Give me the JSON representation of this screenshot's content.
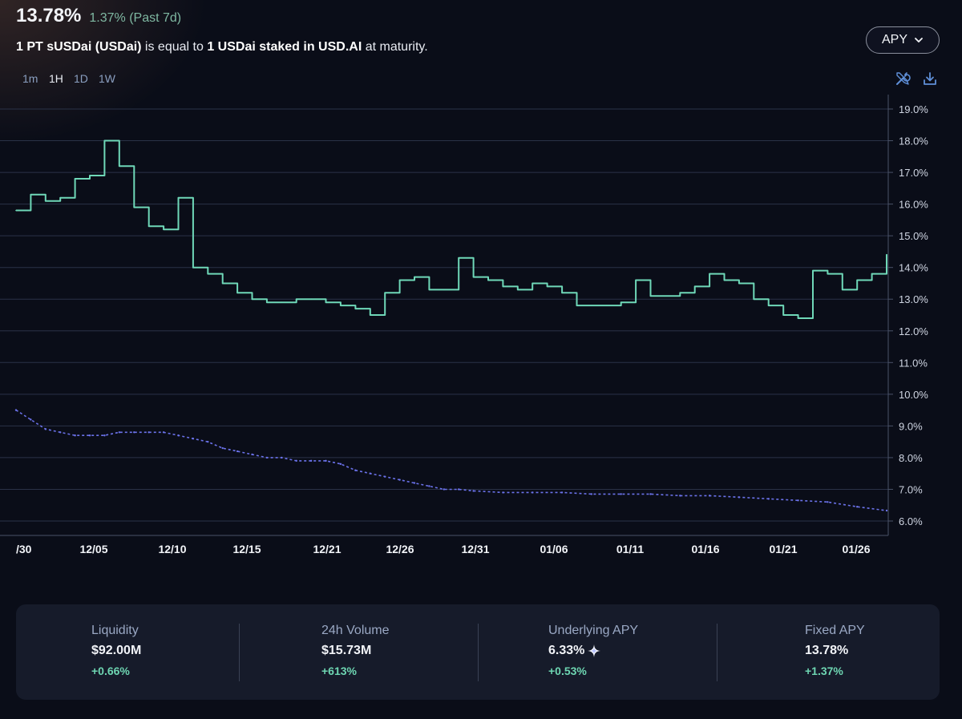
{
  "header": {
    "value": "13.78%",
    "change": "1.37% (Past 7d)"
  },
  "description": {
    "part1": "1 PT sUSDai (USDai)",
    "part2": " is equal to ",
    "part3": "1 USDai staked in USD.AI",
    "part4": " at maturity."
  },
  "toolbar": {
    "dropdown_label": "APY",
    "timeframes": [
      "1m",
      "1H",
      "1D",
      "1W"
    ],
    "active_timeframe": "1H",
    "icons": [
      "wrench-screwdriver-icon",
      "download-icon"
    ]
  },
  "chart_data": {
    "type": "line",
    "x_labels": [
      "/30",
      "12/05",
      "12/10",
      "12/15",
      "12/21",
      "12/26",
      "12/31",
      "01/06",
      "01/11",
      "01/16",
      "01/21",
      "01/26"
    ],
    "y_ticks": [
      "19.0%",
      "18.0%",
      "17.0%",
      "16.0%",
      "15.0%",
      "14.0%",
      "13.0%",
      "12.0%",
      "11.0%",
      "10.0%",
      "9.0%",
      "8.0%",
      "7.0%",
      "6.0%"
    ],
    "ylim": [
      6.0,
      19.0
    ],
    "grid": true,
    "series": [
      {
        "style": "solid",
        "color": "#6fd8b8",
        "points": [
          [
            "11/30",
            15.8
          ],
          [
            "12/01",
            16.3
          ],
          [
            "12/02",
            16.1
          ],
          [
            "12/03",
            16.2
          ],
          [
            "12/04",
            16.8
          ],
          [
            "12/05",
            16.9
          ],
          [
            "12/06",
            18.0
          ],
          [
            "12/07",
            17.2
          ],
          [
            "12/08",
            15.9
          ],
          [
            "12/09",
            15.3
          ],
          [
            "12/10",
            15.2
          ],
          [
            "12/11",
            16.2
          ],
          [
            "12/12",
            14.0
          ],
          [
            "12/13",
            13.8
          ],
          [
            "12/14",
            13.5
          ],
          [
            "12/15",
            13.2
          ],
          [
            "12/16",
            13.0
          ],
          [
            "12/17",
            12.9
          ],
          [
            "12/18",
            12.9
          ],
          [
            "12/19",
            13.0
          ],
          [
            "12/20",
            13.0
          ],
          [
            "12/21",
            12.9
          ],
          [
            "12/22",
            12.8
          ],
          [
            "12/23",
            12.7
          ],
          [
            "12/24",
            12.5
          ],
          [
            "12/25",
            13.2
          ],
          [
            "12/26",
            13.6
          ],
          [
            "12/27",
            13.7
          ],
          [
            "12/28",
            13.3
          ],
          [
            "12/29",
            13.3
          ],
          [
            "12/30",
            14.3
          ],
          [
            "12/31",
            13.7
          ],
          [
            "01/01",
            13.6
          ],
          [
            "01/02",
            13.4
          ],
          [
            "01/03",
            13.3
          ],
          [
            "01/04",
            13.5
          ],
          [
            "01/05",
            13.4
          ],
          [
            "01/06",
            13.2
          ],
          [
            "01/07",
            12.8
          ],
          [
            "01/08",
            12.8
          ],
          [
            "01/09",
            12.8
          ],
          [
            "01/10",
            12.9
          ],
          [
            "01/11",
            13.6
          ],
          [
            "01/12",
            13.1
          ],
          [
            "01/13",
            13.1
          ],
          [
            "01/14",
            13.2
          ],
          [
            "01/15",
            13.4
          ],
          [
            "01/16",
            13.8
          ],
          [
            "01/17",
            13.6
          ],
          [
            "01/18",
            13.5
          ],
          [
            "01/19",
            13.0
          ],
          [
            "01/20",
            12.8
          ],
          [
            "01/21",
            12.5
          ],
          [
            "01/22",
            12.4
          ],
          [
            "01/23",
            13.9
          ],
          [
            "01/24",
            13.8
          ],
          [
            "01/25",
            13.3
          ],
          [
            "01/26",
            13.6
          ],
          [
            "01/27",
            13.8
          ],
          [
            "01/28",
            14.4
          ],
          [
            "01/28",
            13.8
          ]
        ]
      },
      {
        "style": "dashed",
        "color": "#6b72ea",
        "points": [
          [
            "11/30",
            9.5
          ],
          [
            "12/01",
            9.2
          ],
          [
            "12/02",
            8.9
          ],
          [
            "12/03",
            8.8
          ],
          [
            "12/04",
            8.7
          ],
          [
            "12/05",
            8.7
          ],
          [
            "12/06",
            8.7
          ],
          [
            "12/07",
            8.8
          ],
          [
            "12/08",
            8.8
          ],
          [
            "12/09",
            8.8
          ],
          [
            "12/10",
            8.8
          ],
          [
            "12/11",
            8.7
          ],
          [
            "12/12",
            8.6
          ],
          [
            "12/13",
            8.5
          ],
          [
            "12/14",
            8.3
          ],
          [
            "12/15",
            8.2
          ],
          [
            "12/16",
            8.1
          ],
          [
            "12/17",
            8.0
          ],
          [
            "12/18",
            8.0
          ],
          [
            "12/19",
            7.9
          ],
          [
            "12/20",
            7.9
          ],
          [
            "12/21",
            7.9
          ],
          [
            "12/22",
            7.8
          ],
          [
            "12/23",
            7.6
          ],
          [
            "12/24",
            7.5
          ],
          [
            "12/25",
            7.4
          ],
          [
            "12/26",
            7.3
          ],
          [
            "12/27",
            7.2
          ],
          [
            "12/28",
            7.1
          ],
          [
            "12/29",
            7.0
          ],
          [
            "12/30",
            7.0
          ],
          [
            "12/31",
            6.95
          ],
          [
            "01/02",
            6.9
          ],
          [
            "01/04",
            6.9
          ],
          [
            "01/06",
            6.9
          ],
          [
            "01/08",
            6.85
          ],
          [
            "01/10",
            6.85
          ],
          [
            "01/12",
            6.85
          ],
          [
            "01/14",
            6.8
          ],
          [
            "01/16",
            6.8
          ],
          [
            "01/18",
            6.75
          ],
          [
            "01/20",
            6.7
          ],
          [
            "01/22",
            6.65
          ],
          [
            "01/24",
            6.6
          ],
          [
            "01/26",
            6.45
          ],
          [
            "01/28",
            6.33
          ]
        ]
      }
    ]
  },
  "stats": [
    {
      "label": "Liquidity",
      "value": "$92.00M",
      "change": "+0.66%",
      "icon": ""
    },
    {
      "label": "24h Volume",
      "value": "$15.73M",
      "change": "+613%",
      "icon": ""
    },
    {
      "label": "Underlying APY",
      "value": "6.33%",
      "change": "+0.53%",
      "icon": "sparkle-icon"
    },
    {
      "label": "Fixed APY",
      "value": "13.78%",
      "change": "+1.37%",
      "icon": ""
    }
  ],
  "colors": {
    "background": "#0a0d18",
    "panel": "#161b2a",
    "fixed_apy_line": "#6fd8b8",
    "underlying_apy_line": "#6b72ea",
    "positive": "#6ed6b2"
  }
}
